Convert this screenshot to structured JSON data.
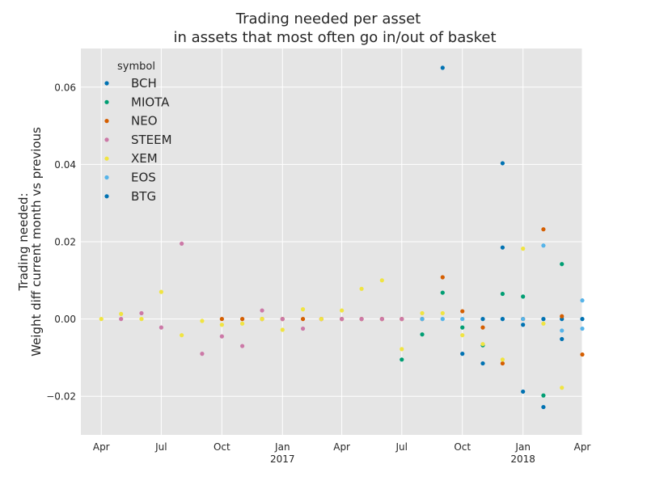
{
  "chart_data": {
    "type": "scatter",
    "title_line1": "Trading needed per asset",
    "title_line2": "in assets that most often go in/out of basket",
    "ylabel_line1": "Trading needed:",
    "ylabel_line2": "Weight diff current month vs previous",
    "xlabel": "",
    "xlim": [
      "2016-03-01",
      "2018-04-01"
    ],
    "ylim": [
      -0.03,
      0.07
    ],
    "y_ticks": [
      -0.02,
      0.0,
      0.02,
      0.04,
      0.06
    ],
    "y_tick_labels": [
      "−0.02",
      "0.00",
      "0.02",
      "0.04",
      "0.06"
    ],
    "x_ticks": [
      {
        "date": "2016-04-01",
        "label": "Apr",
        "year": ""
      },
      {
        "date": "2016-07-01",
        "label": "Jul",
        "year": ""
      },
      {
        "date": "2016-10-01",
        "label": "Oct",
        "year": ""
      },
      {
        "date": "2017-01-01",
        "label": "Jan",
        "year": "2017"
      },
      {
        "date": "2017-04-01",
        "label": "Apr",
        "year": ""
      },
      {
        "date": "2017-07-01",
        "label": "Jul",
        "year": ""
      },
      {
        "date": "2017-10-01",
        "label": "Oct",
        "year": ""
      },
      {
        "date": "2018-01-01",
        "label": "Jan",
        "year": "2018"
      },
      {
        "date": "2018-04-01",
        "label": "Apr",
        "year": ""
      }
    ],
    "grid": true,
    "legend_title": "symbol",
    "legend_position": "top-left",
    "series": [
      {
        "name": "BCH",
        "color": "#0072B2",
        "points": [
          [
            "2017-09-01",
            0.065
          ],
          [
            "2017-10-01",
            -0.009
          ],
          [
            "2017-11-01",
            0.0
          ],
          [
            "2017-11-01",
            -0.0115
          ],
          [
            "2017-12-01",
            0.0403
          ],
          [
            "2017-12-01",
            0.0185
          ],
          [
            "2018-01-01",
            -0.0015
          ],
          [
            "2018-02-01",
            0.0
          ],
          [
            "2018-03-01",
            0.0
          ]
        ]
      },
      {
        "name": "MIOTA",
        "color": "#009E73",
        "points": [
          [
            "2017-07-01",
            -0.0105
          ],
          [
            "2017-08-01",
            -0.004
          ],
          [
            "2017-09-01",
            0.0068
          ],
          [
            "2017-10-01",
            -0.0022
          ],
          [
            "2017-11-01",
            -0.0068
          ],
          [
            "2017-12-01",
            0.0065
          ],
          [
            "2018-01-01",
            0.0058
          ],
          [
            "2018-02-01",
            -0.0198
          ],
          [
            "2018-03-01",
            0.0142
          ]
        ]
      },
      {
        "name": "NEO",
        "color": "#D55E00",
        "points": [
          [
            "2016-10-01",
            0.0
          ],
          [
            "2016-11-01",
            0.0
          ],
          [
            "2016-12-01",
            0.0
          ],
          [
            "2017-01-01",
            0.0
          ],
          [
            "2017-02-01",
            0.0
          ],
          [
            "2017-03-01",
            0.0
          ],
          [
            "2017-04-01",
            0.0
          ],
          [
            "2017-05-01",
            0.0
          ],
          [
            "2017-06-01",
            0.0
          ],
          [
            "2017-07-01",
            0.0
          ],
          [
            "2017-08-01",
            0.0
          ],
          [
            "2017-09-01",
            0.0108
          ],
          [
            "2017-10-01",
            0.002
          ],
          [
            "2017-11-01",
            -0.0022
          ],
          [
            "2017-12-01",
            -0.0115
          ],
          [
            "2018-01-01",
            0.0
          ],
          [
            "2018-02-01",
            0.0232
          ],
          [
            "2018-03-01",
            0.0007
          ],
          [
            "2018-04-01",
            -0.0092
          ]
        ]
      },
      {
        "name": "STEEM",
        "color": "#CC79A7",
        "points": [
          [
            "2016-05-01",
            0.0
          ],
          [
            "2016-06-01",
            0.0015
          ],
          [
            "2016-07-01",
            -0.0022
          ],
          [
            "2016-08-01",
            0.0195
          ],
          [
            "2016-09-01",
            -0.009
          ],
          [
            "2016-10-01",
            -0.0045
          ],
          [
            "2016-11-01",
            -0.007
          ],
          [
            "2016-12-01",
            0.0022
          ],
          [
            "2017-01-01",
            0.0
          ],
          [
            "2017-02-01",
            -0.0025
          ],
          [
            "2017-03-01",
            0.0
          ],
          [
            "2017-04-01",
            0.0
          ],
          [
            "2017-05-01",
            0.0
          ],
          [
            "2017-06-01",
            0.0
          ],
          [
            "2017-07-01",
            0.0
          ]
        ]
      },
      {
        "name": "XEM",
        "color": "#F0E442",
        "points": [
          [
            "2016-04-01",
            0.0
          ],
          [
            "2016-05-01",
            0.0013
          ],
          [
            "2016-06-01",
            0.0
          ],
          [
            "2016-07-01",
            0.007
          ],
          [
            "2016-08-01",
            -0.0042
          ],
          [
            "2016-09-01",
            -0.0005
          ],
          [
            "2016-10-01",
            -0.0015
          ],
          [
            "2016-11-01",
            -0.0012
          ],
          [
            "2016-12-01",
            0.0
          ],
          [
            "2017-01-01",
            -0.0028
          ],
          [
            "2017-02-01",
            0.0025
          ],
          [
            "2017-03-01",
            0.0
          ],
          [
            "2017-04-01",
            0.0022
          ],
          [
            "2017-05-01",
            0.0078
          ],
          [
            "2017-06-01",
            0.01
          ],
          [
            "2017-07-01",
            -0.0078
          ],
          [
            "2017-08-01",
            0.0015
          ],
          [
            "2017-09-01",
            0.0015
          ],
          [
            "2017-10-01",
            -0.0042
          ],
          [
            "2017-11-01",
            -0.0065
          ],
          [
            "2017-12-01",
            -0.0105
          ],
          [
            "2018-01-01",
            0.0182
          ],
          [
            "2018-02-01",
            -0.0012
          ],
          [
            "2018-03-01",
            -0.0178
          ]
        ]
      },
      {
        "name": "EOS",
        "color": "#56B4E9",
        "points": [
          [
            "2017-08-01",
            0.0
          ],
          [
            "2017-09-01",
            0.0
          ],
          [
            "2017-10-01",
            0.0
          ],
          [
            "2017-12-01",
            0.0
          ],
          [
            "2018-01-01",
            0.0
          ],
          [
            "2018-02-01",
            0.019
          ],
          [
            "2018-03-01",
            -0.003
          ],
          [
            "2018-04-01",
            0.0048
          ],
          [
            "2018-04-01",
            -0.0025
          ]
        ]
      },
      {
        "name": "BTG",
        "color": "#0072B2",
        "points": [
          [
            "2017-12-01",
            0.0
          ],
          [
            "2018-01-01",
            -0.0188
          ],
          [
            "2018-02-01",
            -0.0228
          ],
          [
            "2018-03-01",
            -0.0052
          ],
          [
            "2018-04-01",
            0.0
          ]
        ]
      }
    ]
  }
}
